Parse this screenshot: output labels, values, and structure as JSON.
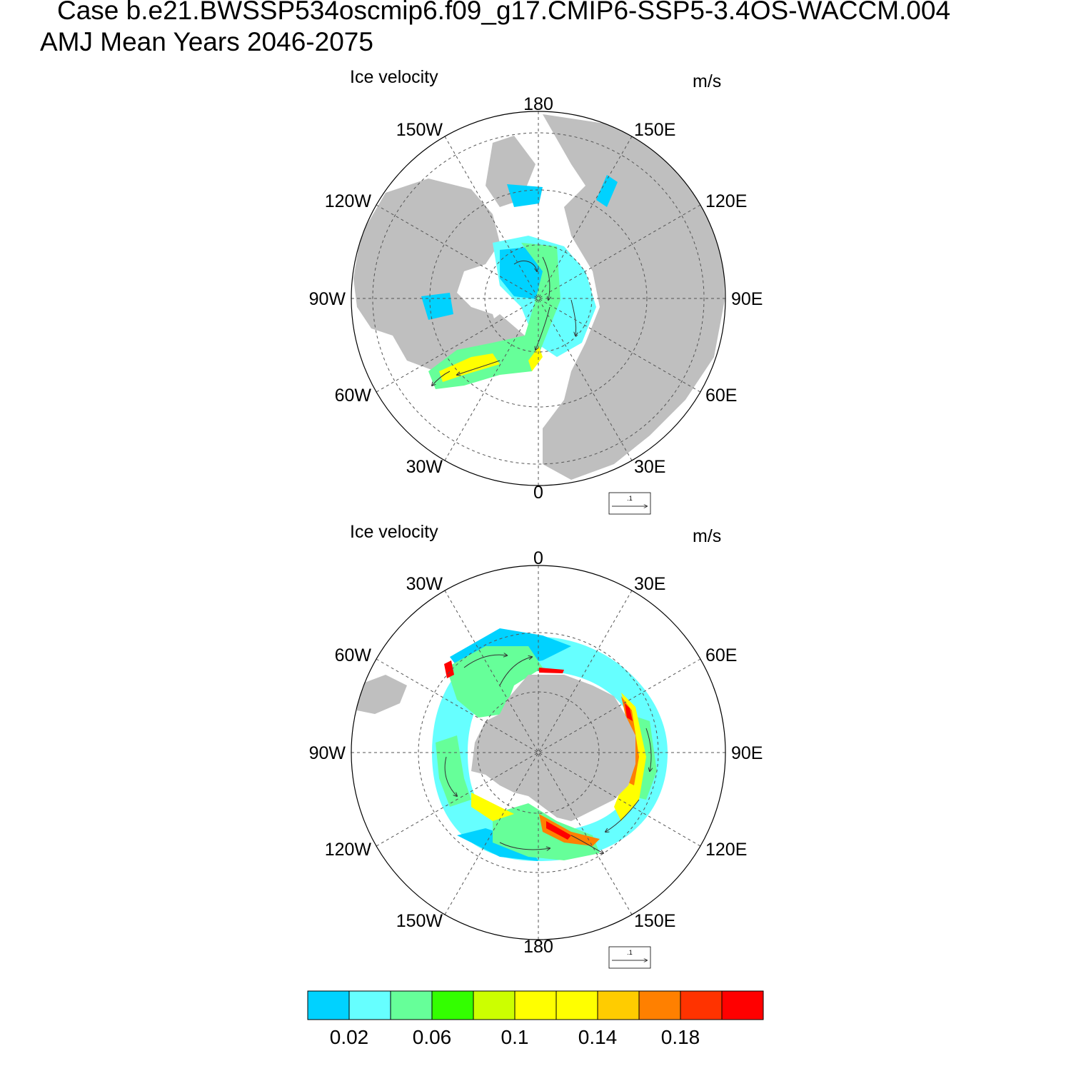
{
  "header": {
    "case_line": "Case b.e21.BWSSP534oscmip6.f09_g17.CMIP6-SSP5-3.4OS-WACCM.004",
    "period_line": "AMJ Mean   Years 2046-2075"
  },
  "panels": [
    {
      "id": "north",
      "title": "Ice velocity",
      "units": "m/s",
      "lon_labels": [
        "180",
        "150E",
        "120E",
        "90E",
        "60E",
        "30E",
        "0",
        "30W",
        "60W",
        "90W",
        "120W",
        "150W"
      ],
      "ref_vector_label": ".1"
    },
    {
      "id": "south",
      "title": "Ice velocity",
      "units": "m/s",
      "lon_labels": [
        "0",
        "30E",
        "60E",
        "90E",
        "120E",
        "150E",
        "180",
        "150W",
        "120W",
        "90W",
        "60W",
        "30W"
      ],
      "ref_vector_label": ".1"
    }
  ],
  "colorbar": {
    "colors": [
      "#00d2ff",
      "#66ffff",
      "#66ff99",
      "#33ff00",
      "#ccff00",
      "#ffff00",
      "#ffff00",
      "#ffcc00",
      "#ff8000",
      "#ff3300",
      "#ff0000"
    ],
    "labels": [
      "0.02",
      "0.06",
      "0.1",
      "0.14",
      "0.18"
    ]
  },
  "colors": {
    "land": "#bfbfbf",
    "ocean": "#ffffff",
    "grid": "#555555"
  }
}
